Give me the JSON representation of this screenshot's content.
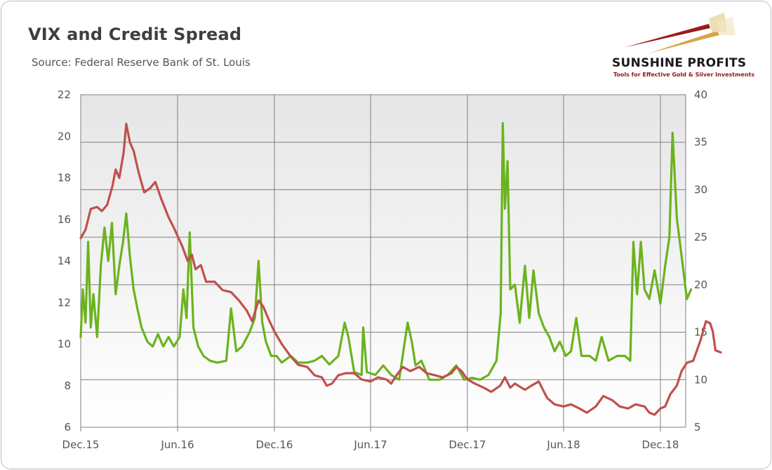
{
  "header": {
    "title": "VIX and Credit Spread",
    "subtitle": "Source: Federal Reserve Bank of St. Louis"
  },
  "logo": {
    "name": "SUNSHINE PROFITS",
    "tagline": "Tools for Effective Gold & Silver Investments"
  },
  "colors": {
    "credit_spread": "#c0504d",
    "vix": "#6bb31e",
    "plot_bg_top": "#e8e8e8",
    "plot_bg_bottom": "#ffffff",
    "grid": "#7f7f7f"
  },
  "chart_data": {
    "type": "line",
    "grid": true,
    "x_ticks": [
      "Dec.15",
      "Jun.16",
      "Dec.16",
      "Jun.17",
      "Dec.17",
      "Jun.18",
      "Dec.18"
    ],
    "y_left": {
      "ticks": [
        6,
        8,
        10,
        12,
        14,
        16,
        18,
        20,
        22
      ],
      "range": [
        6,
        22
      ]
    },
    "y_right": {
      "ticks": [
        5,
        10,
        15,
        20,
        25,
        30,
        35,
        40
      ],
      "range": [
        5,
        40
      ]
    },
    "series": [
      {
        "key": "credit_spread",
        "axis": "left",
        "points": [
          [
            "2015-12-01",
            15.1
          ],
          [
            "2015-12-10",
            15.5
          ],
          [
            "2015-12-20",
            16.5
          ],
          [
            "2016-01-01",
            16.6
          ],
          [
            "2016-01-10",
            16.4
          ],
          [
            "2016-01-20",
            16.7
          ],
          [
            "2016-01-30",
            17.6
          ],
          [
            "2016-02-05",
            18.4
          ],
          [
            "2016-02-12",
            18.0
          ],
          [
            "2016-02-20",
            19.2
          ],
          [
            "2016-02-25",
            20.6
          ],
          [
            "2016-03-03",
            19.7
          ],
          [
            "2016-03-10",
            19.3
          ],
          [
            "2016-03-20",
            18.2
          ],
          [
            "2016-03-30",
            17.3
          ],
          [
            "2016-04-10",
            17.5
          ],
          [
            "2016-04-20",
            17.8
          ],
          [
            "2016-05-01",
            17.0
          ],
          [
            "2016-05-15",
            16.1
          ],
          [
            "2016-05-25",
            15.6
          ],
          [
            "2016-06-10",
            14.7
          ],
          [
            "2016-06-20",
            14.0
          ],
          [
            "2016-06-28",
            14.3
          ],
          [
            "2016-07-05",
            13.6
          ],
          [
            "2016-07-15",
            13.8
          ],
          [
            "2016-07-25",
            13.0
          ],
          [
            "2016-08-10",
            13.0
          ],
          [
            "2016-08-25",
            12.6
          ],
          [
            "2016-09-10",
            12.5
          ],
          [
            "2016-09-25",
            12.1
          ],
          [
            "2016-10-10",
            11.6
          ],
          [
            "2016-10-20",
            11.1
          ],
          [
            "2016-11-01",
            12.1
          ],
          [
            "2016-11-10",
            11.8
          ],
          [
            "2016-11-20",
            11.2
          ],
          [
            "2016-12-01",
            10.6
          ],
          [
            "2016-12-15",
            10.0
          ],
          [
            "2017-01-01",
            9.4
          ],
          [
            "2017-01-15",
            9.0
          ],
          [
            "2017-02-01",
            8.9
          ],
          [
            "2017-02-15",
            8.5
          ],
          [
            "2017-03-01",
            8.4
          ],
          [
            "2017-03-10",
            8.0
          ],
          [
            "2017-03-20",
            8.1
          ],
          [
            "2017-04-01",
            8.5
          ],
          [
            "2017-04-15",
            8.6
          ],
          [
            "2017-05-01",
            8.6
          ],
          [
            "2017-05-15",
            8.3
          ],
          [
            "2017-06-01",
            8.2
          ],
          [
            "2017-06-15",
            8.4
          ],
          [
            "2017-07-01",
            8.3
          ],
          [
            "2017-07-10",
            8.1
          ],
          [
            "2017-07-20",
            8.5
          ],
          [
            "2017-08-01",
            8.9
          ],
          [
            "2017-08-15",
            8.7
          ],
          [
            "2017-09-01",
            8.9
          ],
          [
            "2017-09-15",
            8.6
          ],
          [
            "2017-10-01",
            8.5
          ],
          [
            "2017-10-15",
            8.4
          ],
          [
            "2017-11-01",
            8.6
          ],
          [
            "2017-11-10",
            8.9
          ],
          [
            "2017-11-20",
            8.7
          ],
          [
            "2017-12-01",
            8.3
          ],
          [
            "2017-12-15",
            8.1
          ],
          [
            "2018-01-01",
            7.9
          ],
          [
            "2018-01-15",
            7.7
          ],
          [
            "2018-02-01",
            8.0
          ],
          [
            "2018-02-10",
            8.4
          ],
          [
            "2018-02-20",
            7.9
          ],
          [
            "2018-03-01",
            8.1
          ],
          [
            "2018-03-20",
            7.8
          ],
          [
            "2018-04-01",
            8.0
          ],
          [
            "2018-04-15",
            8.2
          ],
          [
            "2018-05-01",
            7.4
          ],
          [
            "2018-05-15",
            7.1
          ],
          [
            "2018-06-01",
            7.0
          ],
          [
            "2018-06-15",
            7.1
          ],
          [
            "2018-07-01",
            6.9
          ],
          [
            "2018-07-15",
            6.7
          ],
          [
            "2018-08-01",
            7.0
          ],
          [
            "2018-08-15",
            7.5
          ],
          [
            "2018-09-01",
            7.3
          ],
          [
            "2018-09-15",
            7.0
          ],
          [
            "2018-10-01",
            6.9
          ],
          [
            "2018-10-15",
            7.1
          ],
          [
            "2018-11-01",
            7.0
          ],
          [
            "2018-11-10",
            6.7
          ],
          [
            "2018-11-20",
            6.6
          ],
          [
            "2018-12-01",
            6.9
          ],
          [
            "2018-12-10",
            7.0
          ],
          [
            "2018-12-20",
            7.6
          ],
          [
            "2019-01-01",
            8.0
          ],
          [
            "2019-01-10",
            8.7
          ],
          [
            "2019-01-20",
            9.1
          ],
          [
            "2019-02-01",
            9.2
          ],
          [
            "2019-02-15",
            10.2
          ],
          [
            "2019-02-25",
            11.1
          ],
          [
            "2019-03-05",
            11.0
          ],
          [
            "2019-03-10",
            10.6
          ],
          [
            "2019-03-15",
            9.7
          ],
          [
            "2019-03-25",
            9.6
          ]
        ]
      },
      {
        "key": "vix",
        "axis": "right",
        "points": [
          [
            "2015-12-01",
            14.5
          ],
          [
            "2015-12-05",
            19.5
          ],
          [
            "2015-12-10",
            16.0
          ],
          [
            "2015-12-15",
            24.5
          ],
          [
            "2015-12-20",
            15.5
          ],
          [
            "2015-12-25",
            19.0
          ],
          [
            "2016-01-01",
            14.5
          ],
          [
            "2016-01-08",
            22.0
          ],
          [
            "2016-01-15",
            26.0
          ],
          [
            "2016-01-22",
            22.5
          ],
          [
            "2016-01-29",
            26.5
          ],
          [
            "2016-02-05",
            19.0
          ],
          [
            "2016-02-12",
            22.0
          ],
          [
            "2016-02-19",
            24.5
          ],
          [
            "2016-02-25",
            27.5
          ],
          [
            "2016-03-03",
            23.0
          ],
          [
            "2016-03-10",
            19.5
          ],
          [
            "2016-03-17",
            17.5
          ],
          [
            "2016-03-25",
            15.5
          ],
          [
            "2016-04-05",
            14.0
          ],
          [
            "2016-04-15",
            13.5
          ],
          [
            "2016-04-25",
            14.8
          ],
          [
            "2016-05-05",
            13.5
          ],
          [
            "2016-05-15",
            14.5
          ],
          [
            "2016-05-25",
            13.5
          ],
          [
            "2016-06-05",
            14.5
          ],
          [
            "2016-06-12",
            19.5
          ],
          [
            "2016-06-18",
            16.5
          ],
          [
            "2016-06-24",
            25.5
          ],
          [
            "2016-07-01",
            15.5
          ],
          [
            "2016-07-10",
            13.5
          ],
          [
            "2016-07-20",
            12.5
          ],
          [
            "2016-08-01",
            12.0
          ],
          [
            "2016-08-15",
            11.8
          ],
          [
            "2016-09-01",
            12.0
          ],
          [
            "2016-09-10",
            17.5
          ],
          [
            "2016-09-20",
            13.0
          ],
          [
            "2016-10-01",
            13.5
          ],
          [
            "2016-10-15",
            15.0
          ],
          [
            "2016-10-25",
            16.5
          ],
          [
            "2016-11-01",
            22.5
          ],
          [
            "2016-11-08",
            16.0
          ],
          [
            "2016-11-15",
            14.0
          ],
          [
            "2016-11-25",
            12.5
          ],
          [
            "2016-12-05",
            12.5
          ],
          [
            "2016-12-15",
            11.8
          ],
          [
            "2017-01-01",
            12.5
          ],
          [
            "2017-01-15",
            11.8
          ],
          [
            "2017-02-01",
            11.8
          ],
          [
            "2017-02-15",
            12.0
          ],
          [
            "2017-03-01",
            12.5
          ],
          [
            "2017-03-15",
            11.6
          ],
          [
            "2017-04-01",
            12.5
          ],
          [
            "2017-04-13",
            16.0
          ],
          [
            "2017-04-20",
            14.5
          ],
          [
            "2017-05-01",
            10.8
          ],
          [
            "2017-05-15",
            10.5
          ],
          [
            "2017-05-18",
            15.5
          ],
          [
            "2017-05-25",
            10.8
          ],
          [
            "2017-06-10",
            10.5
          ],
          [
            "2017-06-25",
            11.5
          ],
          [
            "2017-07-10",
            10.5
          ],
          [
            "2017-07-25",
            10.0
          ],
          [
            "2017-08-10",
            16.0
          ],
          [
            "2017-08-18",
            14.0
          ],
          [
            "2017-08-25",
            11.5
          ],
          [
            "2017-09-05",
            12.0
          ],
          [
            "2017-09-20",
            10.0
          ],
          [
            "2017-10-10",
            10.0
          ],
          [
            "2017-10-25",
            10.5
          ],
          [
            "2017-11-10",
            11.5
          ],
          [
            "2017-11-25",
            10.0
          ],
          [
            "2017-12-10",
            10.2
          ],
          [
            "2017-12-25",
            10.0
          ],
          [
            "2018-01-10",
            10.5
          ],
          [
            "2018-01-25",
            12.0
          ],
          [
            "2018-02-02",
            17.0
          ],
          [
            "2018-02-06",
            37.0
          ],
          [
            "2018-02-10",
            28.0
          ],
          [
            "2018-02-15",
            33.0
          ],
          [
            "2018-02-20",
            19.5
          ],
          [
            "2018-03-01",
            20.0
          ],
          [
            "2018-03-10",
            16.0
          ],
          [
            "2018-03-20",
            22.0
          ],
          [
            "2018-03-28",
            16.5
          ],
          [
            "2018-04-05",
            21.5
          ],
          [
            "2018-04-15",
            17.0
          ],
          [
            "2018-04-25",
            15.5
          ],
          [
            "2018-05-05",
            14.5
          ],
          [
            "2018-05-15",
            13.0
          ],
          [
            "2018-05-25",
            14.0
          ],
          [
            "2018-06-05",
            12.5
          ],
          [
            "2018-06-15",
            13.0
          ],
          [
            "2018-06-25",
            16.5
          ],
          [
            "2018-07-05",
            12.5
          ],
          [
            "2018-07-20",
            12.5
          ],
          [
            "2018-08-01",
            12.0
          ],
          [
            "2018-08-12",
            14.5
          ],
          [
            "2018-08-25",
            12.0
          ],
          [
            "2018-09-10",
            12.5
          ],
          [
            "2018-09-25",
            12.5
          ],
          [
            "2018-10-05",
            12.0
          ],
          [
            "2018-10-11",
            24.5
          ],
          [
            "2018-10-18",
            19.0
          ],
          [
            "2018-10-25",
            24.5
          ],
          [
            "2018-11-01",
            19.5
          ],
          [
            "2018-11-10",
            18.5
          ],
          [
            "2018-11-20",
            21.5
          ],
          [
            "2018-12-01",
            18.0
          ],
          [
            "2018-12-10",
            22.0
          ],
          [
            "2018-12-18",
            25.0
          ],
          [
            "2018-12-24",
            36.0
          ],
          [
            "2019-01-01",
            27.0
          ],
          [
            "2019-01-10",
            23.0
          ],
          [
            "2019-01-20",
            18.5
          ],
          [
            "2019-01-28",
            19.5
          ]
        ]
      }
    ]
  }
}
